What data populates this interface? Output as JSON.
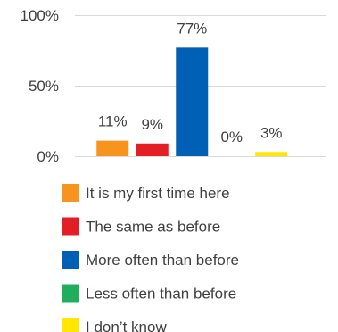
{
  "chart_data": {
    "type": "bar",
    "categories": [
      "It is my first time here",
      "The same as before",
      "More often than before",
      "Less often than before",
      "I don’t know"
    ],
    "values": [
      11,
      9,
      77,
      0,
      3
    ],
    "value_labels": [
      "11%",
      "9%",
      "77%",
      "0%",
      "3%"
    ],
    "colors": [
      "#F7941D",
      "#E31E24",
      "#0060B6",
      "#1FAF5A",
      "#FFE600"
    ],
    "y_ticks": [
      {
        "value": 0,
        "label": "0%"
      },
      {
        "value": 50,
        "label": "50%"
      },
      {
        "value": 100,
        "label": "100%"
      }
    ],
    "ylim": [
      0,
      100
    ],
    "gridlines": true,
    "legend_position": "bottom",
    "title": "",
    "xlabel": "",
    "ylabel": ""
  }
}
